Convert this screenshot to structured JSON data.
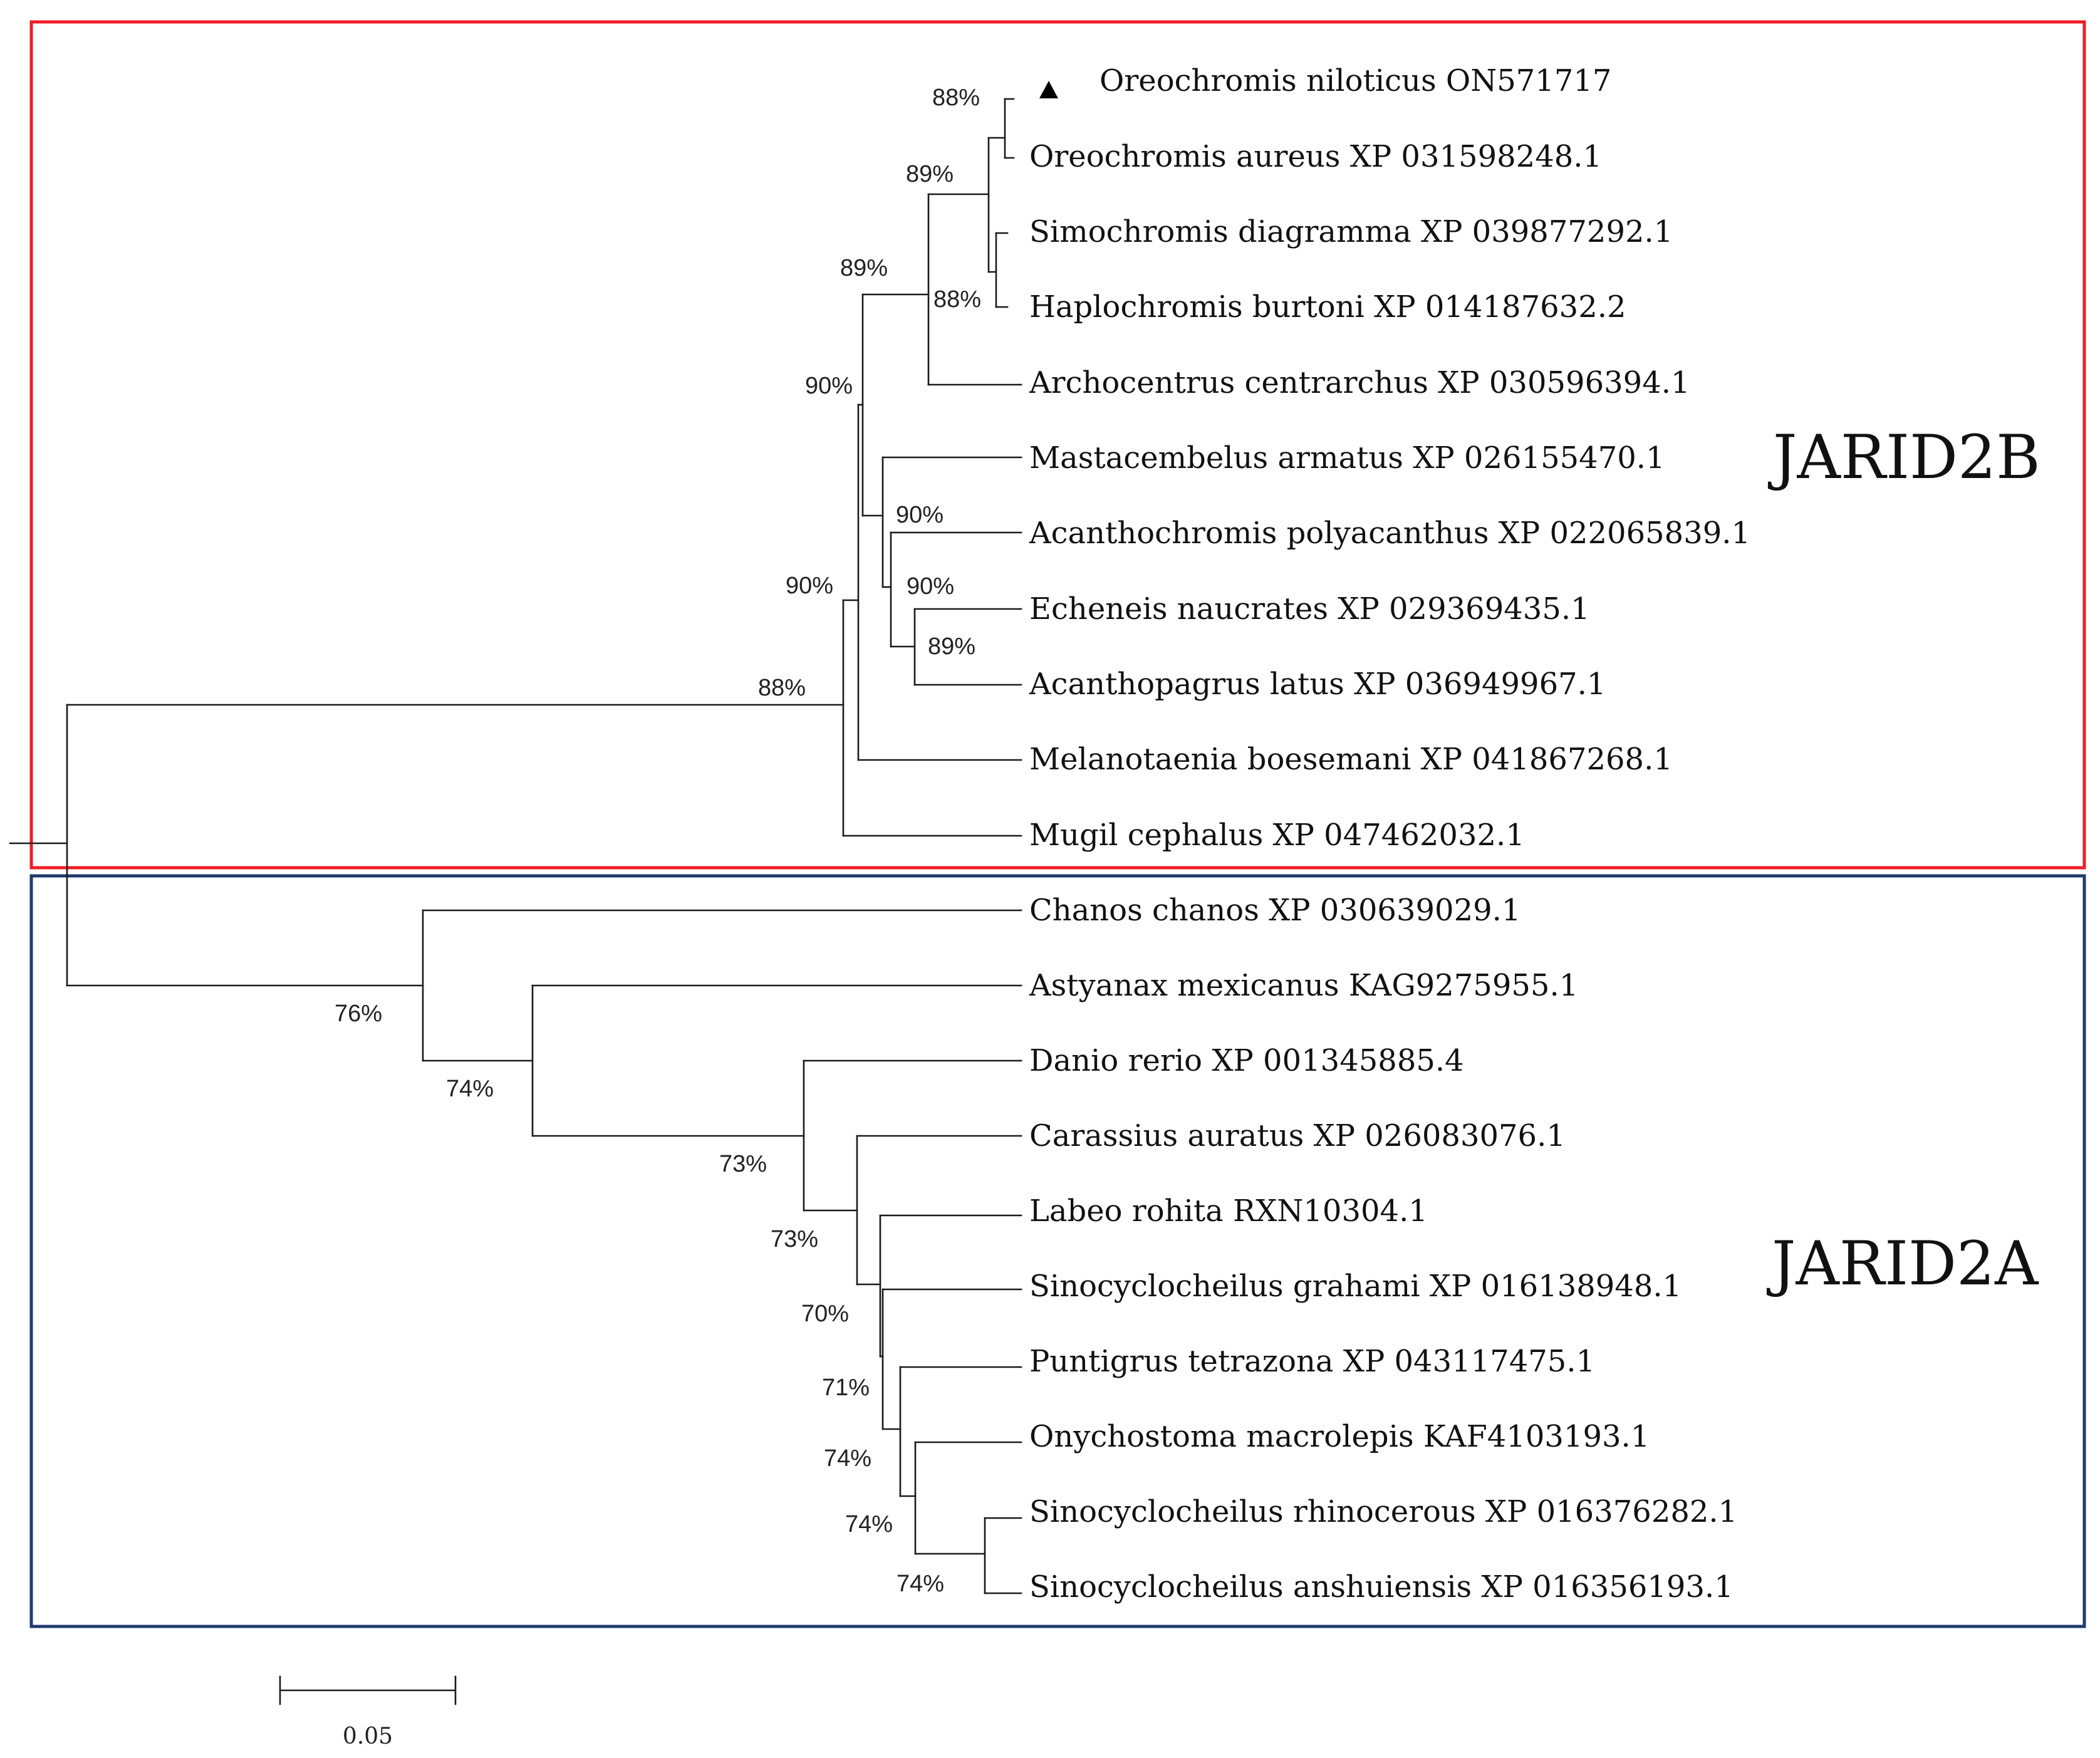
{
  "clade_b": {
    "label": "JARID2B",
    "box_color": "#ee1c24",
    "taxa": [
      "Oreochromis niloticus ON571717",
      "Oreochromis aureus XP 031598248.1",
      "Simochromis diagramma XP 039877292.1",
      "Haplochromis burtoni XP 014187632.2",
      "Archocentrus centrarchus XP 030596394.1",
      "Mastacembelus armatus XP 026155470.1",
      "Acanthochromis polyacanthus XP 022065839.1",
      "Echeneis naucrates XP 029369435.1",
      "Acanthopagrus latus XP 036949967.1",
      "Melanotaenia boesemani XP 041867268.1",
      "Mugil cephalus XP 047462032.1"
    ],
    "supports": [
      "88%",
      "89%",
      "88%",
      "89%",
      "90%",
      "90%",
      "90%",
      "89%",
      "90%",
      "88%"
    ]
  },
  "clade_a": {
    "label": "JARID2A",
    "box_color": "#1f3a6e",
    "taxa": [
      "Chanos chanos XP 030639029.1",
      "Astyanax mexicanus KAG9275955.1",
      "Danio rerio XP 001345885.4",
      "Carassius auratus XP 026083076.1",
      "Labeo rohita RXN10304.1",
      "Sinocyclocheilus grahami XP 016138948.1",
      "Puntigrus tetrazona XP 043117475.1",
      "Onychostoma macrolepis KAF4103193.1",
      "Sinocyclocheilus rhinocerous XP 016376282.1",
      "Sinocyclocheilus anshuiensis XP 016356193.1"
    ],
    "supports": [
      "76%",
      "74%",
      "73%",
      "73%",
      "70%",
      "71%",
      "74%",
      "74%",
      "74%"
    ]
  },
  "marker_icon": "triangle-marker-icon",
  "scale_bar": {
    "label": "0.05",
    "value": 0.05
  }
}
